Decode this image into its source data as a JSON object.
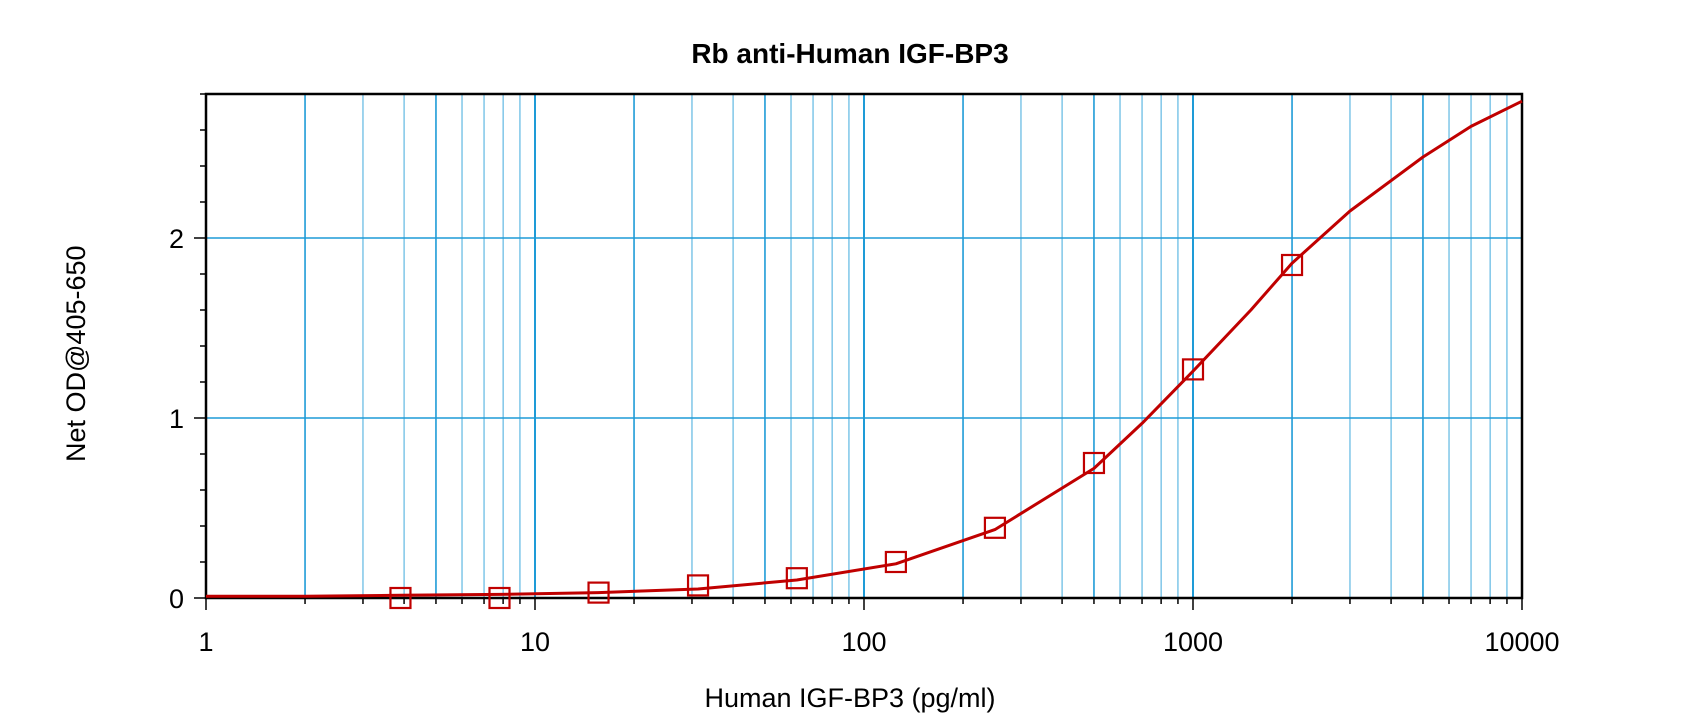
{
  "chart_data": {
    "type": "line",
    "title": "Rb anti-Human IGF-BP3",
    "xlabel": "Human IGF-BP3 (pg/ml)",
    "ylabel": "Net OD@405-650",
    "x_scale": "log",
    "xlim": [
      1,
      10000
    ],
    "ylim": [
      0,
      2.8
    ],
    "x_ticks": [
      "1",
      "10",
      "100",
      "1000",
      "10000"
    ],
    "y_ticks": [
      "0",
      "1",
      "2"
    ],
    "grid": true,
    "points": {
      "x": [
        3.9,
        7.8,
        15.6,
        31.3,
        62.5,
        125,
        250,
        500,
        1000,
        2000
      ],
      "y": [
        0.0,
        0.0,
        0.03,
        0.07,
        0.11,
        0.2,
        0.39,
        0.75,
        1.27,
        1.85
      ]
    },
    "fit_curve": {
      "x": [
        1,
        2,
        3.9,
        7.8,
        15.6,
        31.3,
        62.5,
        125,
        250,
        500,
        700,
        1000,
        1500,
        2000,
        3000,
        5000,
        7000,
        10000
      ],
      "y": [
        0.01,
        0.01,
        0.015,
        0.02,
        0.03,
        0.05,
        0.1,
        0.19,
        0.38,
        0.72,
        0.97,
        1.26,
        1.6,
        1.86,
        2.15,
        2.45,
        2.62,
        2.76
      ]
    },
    "colors": {
      "curve": "#c00000",
      "grid": "#1e9bd7",
      "axis": "#000000"
    }
  }
}
